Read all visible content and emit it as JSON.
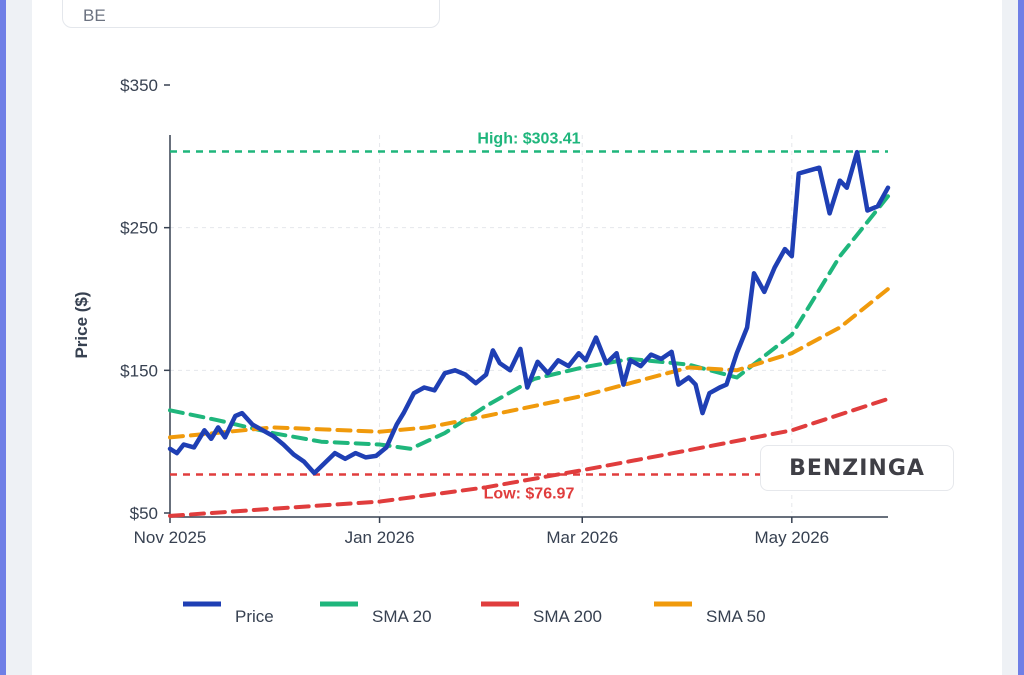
{
  "header": {
    "ticker": "BE"
  },
  "watermark": {
    "text": "BENZINGA"
  },
  "colors": {
    "price": "#1f3fb4",
    "sma20": "#1fb67c",
    "sma200": "#e03d3d",
    "sma50": "#f09a0c",
    "high": "#1fb67c",
    "low": "#e03d3d"
  },
  "chart_data": {
    "type": "line",
    "ylabel": "Price ($)",
    "ylim": [
      50,
      350
    ],
    "y_ticks": [
      {
        "value": 50,
        "label": "$50"
      },
      {
        "value": 150,
        "label": "$150"
      },
      {
        "value": 250,
        "label": "$250"
      },
      {
        "value": 350,
        "label": "$350"
      }
    ],
    "x_ticks": [
      {
        "date": "2025-11-01",
        "label": "Nov 2025"
      },
      {
        "date": "2026-01-01",
        "label": "Jan 2026"
      },
      {
        "date": "2026-03-01",
        "label": "Mar 2026"
      },
      {
        "date": "2026-05-01",
        "label": "May 2026"
      }
    ],
    "x_range": [
      "2025-11-01",
      "2026-05-29"
    ],
    "grid": true,
    "legend_position": "bottom",
    "annotations": [
      {
        "label": "High: $303.41",
        "value": 303.41,
        "series_color": "high"
      },
      {
        "label": "Low: $76.97",
        "value": 76.97,
        "series_color": "low"
      }
    ],
    "series": [
      {
        "name": "Price",
        "color_key": "price",
        "style": "solid",
        "points": [
          [
            "2025-11-01",
            95
          ],
          [
            "2025-11-03",
            92
          ],
          [
            "2025-11-05",
            98
          ],
          [
            "2025-11-08",
            96
          ],
          [
            "2025-11-11",
            108
          ],
          [
            "2025-11-13",
            102
          ],
          [
            "2025-11-15",
            110
          ],
          [
            "2025-11-17",
            103
          ],
          [
            "2025-11-20",
            118
          ],
          [
            "2025-11-22",
            120
          ],
          [
            "2025-11-25",
            112
          ],
          [
            "2025-11-28",
            108
          ],
          [
            "2025-12-01",
            104
          ],
          [
            "2025-12-04",
            98
          ],
          [
            "2025-12-07",
            91
          ],
          [
            "2025-12-10",
            86
          ],
          [
            "2025-12-13",
            78
          ],
          [
            "2025-12-16",
            85
          ],
          [
            "2025-12-19",
            92
          ],
          [
            "2025-12-22",
            88
          ],
          [
            "2025-12-25",
            92
          ],
          [
            "2025-12-28",
            89
          ],
          [
            "2025-12-31",
            90
          ],
          [
            "2026-01-03",
            96
          ],
          [
            "2026-01-06",
            112
          ],
          [
            "2026-01-08",
            120
          ],
          [
            "2026-01-11",
            134
          ],
          [
            "2026-01-14",
            138
          ],
          [
            "2026-01-17",
            136
          ],
          [
            "2026-01-20",
            148
          ],
          [
            "2026-01-23",
            150
          ],
          [
            "2026-01-26",
            147
          ],
          [
            "2026-01-29",
            141
          ],
          [
            "2026-02-01",
            147
          ],
          [
            "2026-02-03",
            164
          ],
          [
            "2026-02-05",
            155
          ],
          [
            "2026-02-08",
            150
          ],
          [
            "2026-02-11",
            165
          ],
          [
            "2026-02-13",
            138
          ],
          [
            "2026-02-16",
            156
          ],
          [
            "2026-02-19",
            148
          ],
          [
            "2026-02-22",
            157
          ],
          [
            "2026-02-25",
            153
          ],
          [
            "2026-02-28",
            162
          ],
          [
            "2026-03-02",
            157
          ],
          [
            "2026-03-05",
            173
          ],
          [
            "2026-03-08",
            155
          ],
          [
            "2026-03-11",
            162
          ],
          [
            "2026-03-13",
            140
          ],
          [
            "2026-03-15",
            157
          ],
          [
            "2026-03-18",
            153
          ],
          [
            "2026-03-21",
            161
          ],
          [
            "2026-03-24",
            158
          ],
          [
            "2026-03-27",
            163
          ],
          [
            "2026-03-29",
            140
          ],
          [
            "2026-04-01",
            145
          ],
          [
            "2026-04-03",
            140
          ],
          [
            "2026-04-05",
            120
          ],
          [
            "2026-04-07",
            134
          ],
          [
            "2026-04-10",
            138
          ],
          [
            "2026-04-12",
            140
          ],
          [
            "2026-04-15",
            162
          ],
          [
            "2026-04-18",
            180
          ],
          [
            "2026-04-20",
            218
          ],
          [
            "2026-04-23",
            205
          ],
          [
            "2026-04-26",
            222
          ],
          [
            "2026-04-29",
            235
          ],
          [
            "2026-05-01",
            230
          ],
          [
            "2026-05-03",
            288
          ],
          [
            "2026-05-06",
            290
          ],
          [
            "2026-05-09",
            292
          ],
          [
            "2026-05-12",
            260
          ],
          [
            "2026-05-15",
            283
          ],
          [
            "2026-05-17",
            278
          ],
          [
            "2026-05-20",
            303
          ],
          [
            "2026-05-23",
            262
          ],
          [
            "2026-05-26",
            265
          ],
          [
            "2026-05-29",
            278
          ]
        ]
      },
      {
        "name": "SMA 20",
        "color_key": "sma20",
        "style": "dashed",
        "points": [
          [
            "2025-11-01",
            122
          ],
          [
            "2025-11-15",
            115
          ],
          [
            "2025-12-01",
            106
          ],
          [
            "2025-12-15",
            100
          ],
          [
            "2026-01-01",
            98
          ],
          [
            "2026-01-10",
            95
          ],
          [
            "2026-01-20",
            106
          ],
          [
            "2026-02-01",
            125
          ],
          [
            "2026-02-15",
            144
          ],
          [
            "2026-03-01",
            152
          ],
          [
            "2026-03-15",
            158
          ],
          [
            "2026-04-01",
            154
          ],
          [
            "2026-04-15",
            145
          ],
          [
            "2026-05-01",
            175
          ],
          [
            "2026-05-15",
            230
          ],
          [
            "2026-05-29",
            272
          ]
        ]
      },
      {
        "name": "SMA 200",
        "color_key": "sma200",
        "style": "dashed",
        "points": [
          [
            "2025-11-01",
            48
          ],
          [
            "2025-12-01",
            53
          ],
          [
            "2026-01-01",
            58
          ],
          [
            "2026-02-01",
            68
          ],
          [
            "2026-03-01",
            80
          ],
          [
            "2026-04-01",
            94
          ],
          [
            "2026-05-01",
            108
          ],
          [
            "2026-05-29",
            130
          ]
        ]
      },
      {
        "name": "SMA 50",
        "color_key": "sma50",
        "style": "dashed",
        "points": [
          [
            "2025-11-01",
            103
          ],
          [
            "2025-12-01",
            110
          ],
          [
            "2026-01-01",
            107
          ],
          [
            "2026-01-15",
            110
          ],
          [
            "2026-02-01",
            118
          ],
          [
            "2026-03-01",
            132
          ],
          [
            "2026-04-01",
            152
          ],
          [
            "2026-04-15",
            150
          ],
          [
            "2026-05-01",
            162
          ],
          [
            "2026-05-15",
            180
          ],
          [
            "2026-05-29",
            207
          ]
        ]
      }
    ]
  }
}
